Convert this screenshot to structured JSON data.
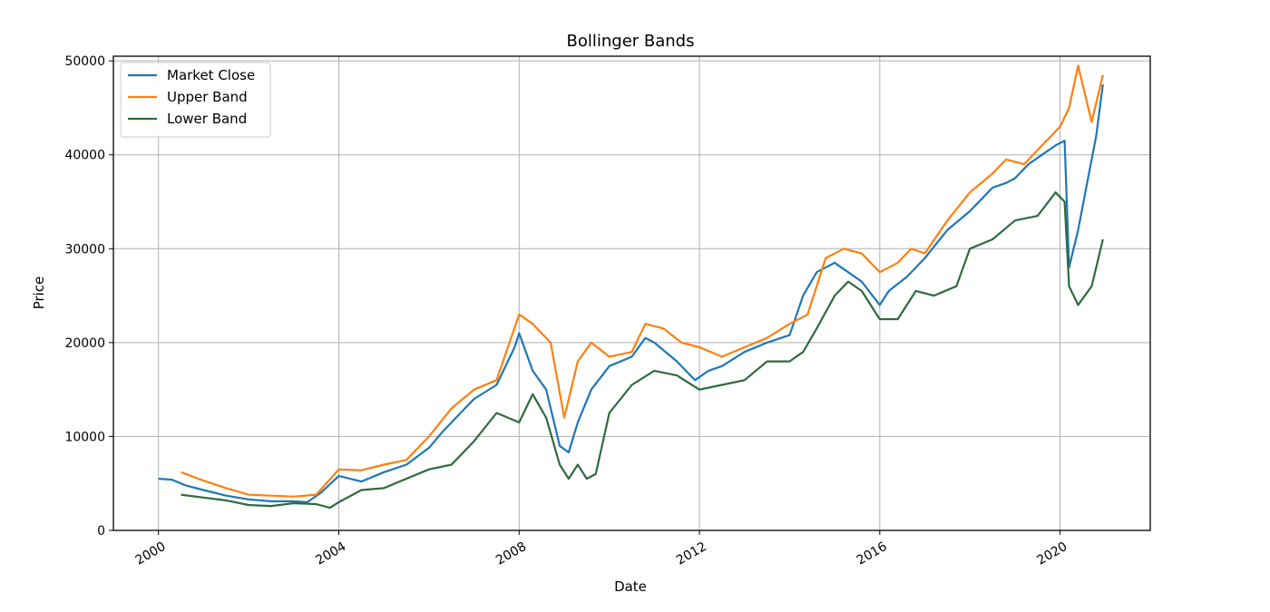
{
  "chart_data": {
    "type": "line",
    "title": "Bollinger Bands",
    "xlabel": "Date",
    "ylabel": "Price",
    "xlim": [
      1999.0,
      2022.0
    ],
    "ylim": [
      0,
      50500
    ],
    "x_ticks": [
      2000,
      2004,
      2008,
      2012,
      2016,
      2020
    ],
    "x_tick_labels": [
      "2000",
      "2004",
      "2008",
      "2012",
      "2016",
      "2020"
    ],
    "y_ticks": [
      0,
      10000,
      20000,
      30000,
      40000,
      50000
    ],
    "y_tick_labels": [
      "0",
      "10000",
      "20000",
      "30000",
      "40000",
      "50000"
    ],
    "grid": true,
    "legend_position": "top-left",
    "series": [
      {
        "name": "Market Close",
        "color": "#1f77b4",
        "x": [
          2000.0,
          2000.3,
          2000.6,
          2001.0,
          2001.5,
          2002.0,
          2002.5,
          2003.0,
          2003.3,
          2003.6,
          2004.0,
          2004.5,
          2005.0,
          2005.5,
          2006.0,
          2006.3,
          2006.6,
          2007.0,
          2007.5,
          2007.9,
          2008.0,
          2008.3,
          2008.6,
          2008.9,
          2009.1,
          2009.3,
          2009.6,
          2010.0,
          2010.5,
          2010.8,
          2011.0,
          2011.5,
          2011.9,
          2012.2,
          2012.5,
          2013.0,
          2013.5,
          2014.0,
          2014.3,
          2014.6,
          2015.0,
          2015.3,
          2015.6,
          2016.0,
          2016.2,
          2016.6,
          2017.0,
          2017.5,
          2018.0,
          2018.5,
          2018.8,
          2019.0,
          2019.3,
          2019.6,
          2019.9,
          2020.1,
          2020.2,
          2020.4,
          2020.6,
          2020.8,
          2020.95
        ],
        "y": [
          5500,
          5400,
          4800,
          4300,
          3700,
          3300,
          3100,
          3100,
          3000,
          4000,
          5800,
          5200,
          6200,
          7000,
          8800,
          10500,
          12000,
          14000,
          15500,
          19500,
          21000,
          17000,
          15000,
          9000,
          8300,
          11500,
          15000,
          17500,
          18500,
          20500,
          20000,
          18000,
          16000,
          17000,
          17500,
          19000,
          20000,
          20800,
          25000,
          27500,
          28500,
          27500,
          26500,
          24000,
          25500,
          27000,
          29000,
          32000,
          34000,
          36500,
          37000,
          37500,
          39000,
          40000,
          41000,
          41500,
          28000,
          32000,
          37000,
          42000,
          47500
        ]
      },
      {
        "name": "Upper Band",
        "color": "#ff7f0e",
        "x": [
          2000.5,
          2001.0,
          2001.5,
          2002.0,
          2002.5,
          2003.0,
          2003.5,
          2004.0,
          2004.5,
          2005.0,
          2005.5,
          2006.0,
          2006.5,
          2007.0,
          2007.5,
          2008.0,
          2008.3,
          2008.7,
          2009.0,
          2009.3,
          2009.6,
          2010.0,
          2010.5,
          2010.8,
          2011.2,
          2011.6,
          2012.0,
          2012.5,
          2013.0,
          2013.5,
          2014.0,
          2014.4,
          2014.8,
          2015.2,
          2015.6,
          2016.0,
          2016.4,
          2016.7,
          2017.0,
          2017.5,
          2018.0,
          2018.5,
          2018.8,
          2019.2,
          2019.6,
          2020.0,
          2020.2,
          2020.4,
          2020.7,
          2020.95
        ],
        "y": [
          6200,
          5300,
          4500,
          3800,
          3700,
          3600,
          3800,
          6500,
          6400,
          7000,
          7500,
          10000,
          13000,
          15000,
          16000,
          23000,
          22000,
          20000,
          12000,
          18000,
          20000,
          18500,
          19000,
          22000,
          21500,
          20000,
          19500,
          18500,
          19500,
          20500,
          22000,
          23000,
          29000,
          30000,
          29500,
          27500,
          28500,
          30000,
          29500,
          33000,
          36000,
          38000,
          39500,
          39000,
          41000,
          43000,
          45000,
          49500,
          43500,
          48500
        ]
      },
      {
        "name": "Lower Band",
        "color": "#2e6b3e",
        "x": [
          2000.5,
          2001.0,
          2001.5,
          2002.0,
          2002.5,
          2003.0,
          2003.5,
          2003.8,
          2004.0,
          2004.5,
          2005.0,
          2005.5,
          2006.0,
          2006.5,
          2007.0,
          2007.5,
          2008.0,
          2008.3,
          2008.6,
          2008.9,
          2009.1,
          2009.3,
          2009.5,
          2009.7,
          2010.0,
          2010.5,
          2011.0,
          2011.5,
          2012.0,
          2012.5,
          2013.0,
          2013.5,
          2014.0,
          2014.3,
          2014.6,
          2015.0,
          2015.3,
          2015.6,
          2016.0,
          2016.4,
          2016.8,
          2017.2,
          2017.7,
          2018.0,
          2018.5,
          2019.0,
          2019.5,
          2019.9,
          2020.1,
          2020.2,
          2020.4,
          2020.7,
          2020.95
        ],
        "y": [
          3800,
          3500,
          3200,
          2700,
          2600,
          2900,
          2800,
          2400,
          3000,
          4300,
          4500,
          5500,
          6500,
          7000,
          9500,
          12500,
          11500,
          14500,
          12000,
          7000,
          5500,
          7000,
          5500,
          6000,
          12500,
          15500,
          17000,
          16500,
          15000,
          15500,
          16000,
          18000,
          18000,
          19000,
          21500,
          25000,
          26500,
          25500,
          22500,
          22500,
          25500,
          25000,
          26000,
          30000,
          31000,
          33000,
          33500,
          36000,
          35000,
          26000,
          24000,
          26000,
          31000
        ]
      }
    ]
  }
}
